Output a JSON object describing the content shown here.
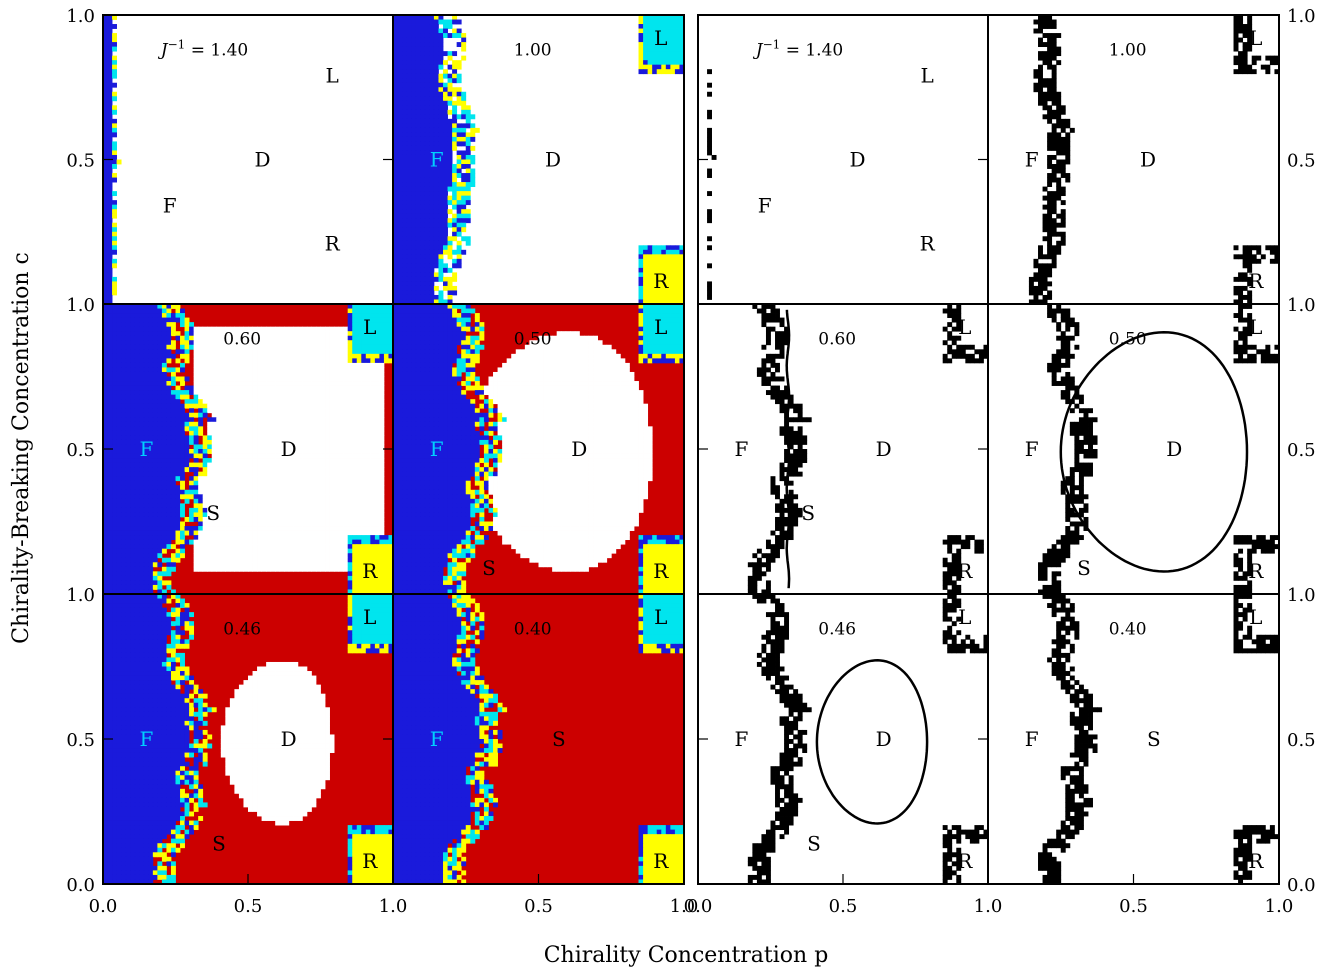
{
  "figure": {
    "xlabel": "Chirality Concentration p",
    "ylabel": "Chirality-Breaking Concentration c"
  },
  "colors": {
    "F": "#1a1adb",
    "S": "#cc0000",
    "D": "#ffffff",
    "L": "#00e5ee",
    "R": "#ffff00",
    "speckle_cyan": "#00e5ee",
    "speckle_yellow": "#ffff00",
    "F_label_color": "#00d0ff"
  },
  "chart_data": {
    "type": "heatmap",
    "description_note": "Phase diagrams of c vs p for several J^-1 values; left block colored regions, right block phase boundaries only.",
    "xlim": [
      0,
      1
    ],
    "ylim": [
      0,
      1
    ],
    "x_ticks": [
      "0.0",
      "0.5",
      "1.0"
    ],
    "y_ticks": [
      "0.0",
      "0.5",
      "1.0"
    ],
    "panel_labels": [
      "J^-1 = 1.40",
      "1.00",
      "0.60",
      "0.50",
      "0.46",
      "0.40"
    ],
    "panels": [
      {
        "jinv": 1.4,
        "label": "J^-1 = 1.40",
        "regions": [
          "F",
          "D",
          "L",
          "R"
        ],
        "D_boundary": "full"
      },
      {
        "jinv": 1.0,
        "label": "1.00",
        "regions": [
          "F",
          "D",
          "L",
          "R"
        ],
        "D_boundary": "full"
      },
      {
        "jinv": 0.6,
        "label": "0.60",
        "regions": [
          "F",
          "D",
          "S",
          "L",
          "R"
        ],
        "D_boundary": "open"
      },
      {
        "jinv": 0.5,
        "label": "0.50",
        "regions": [
          "F",
          "D",
          "S",
          "L",
          "R"
        ],
        "D_boundary": "closed"
      },
      {
        "jinv": 0.46,
        "label": "0.46",
        "regions": [
          "F",
          "D",
          "S",
          "L",
          "R"
        ],
        "D_boundary": "closed"
      },
      {
        "jinv": 0.4,
        "label": "0.40",
        "regions": [
          "F",
          "S",
          "L",
          "R"
        ],
        "D_boundary": "none"
      }
    ],
    "region_labels": {
      "F": "F",
      "D": "D",
      "S": "S",
      "L": "L",
      "R": "R"
    }
  }
}
